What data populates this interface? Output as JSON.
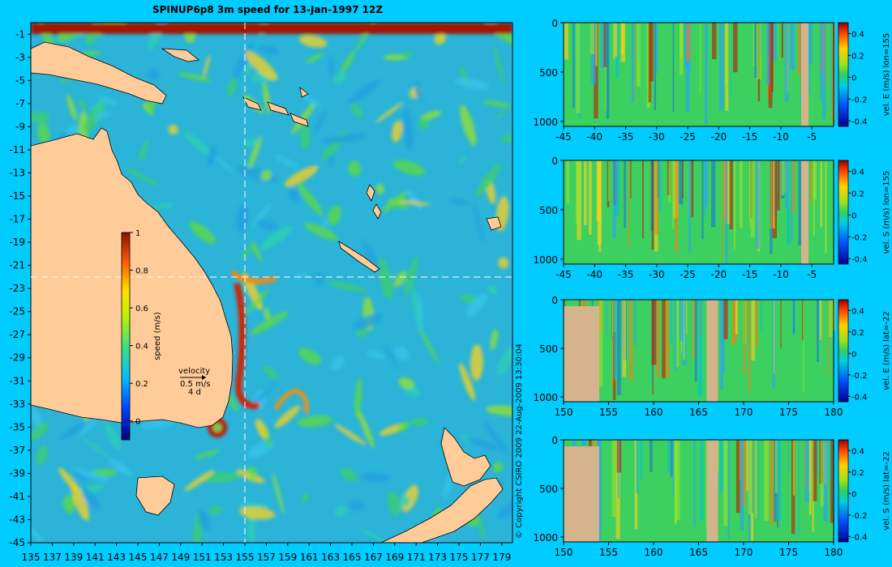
{
  "title": "SPINUP6p8 3m speed for 13-Jan-1997 12Z",
  "copyright": "© Copyright CSIRO 2009   22-Aug-2009 13:30:04",
  "chart_data": [
    {
      "type": "heatmap",
      "name": "surface speed map",
      "title": "SPINUP6p8 3m speed for 13-Jan-1997 12Z",
      "x_ticks": [
        135,
        137,
        139,
        141,
        143,
        145,
        147,
        149,
        151,
        153,
        155,
        157,
        159,
        161,
        163,
        165,
        167,
        169,
        171,
        173,
        175,
        177,
        179
      ],
      "y_ticks": [
        -1,
        -3,
        -5,
        -7,
        -9,
        -11,
        -13,
        -15,
        -17,
        -19,
        -21,
        -23,
        -25,
        -27,
        -29,
        -31,
        -33,
        -35,
        -37,
        -39,
        -41,
        -43,
        -45
      ],
      "xlim": [
        135,
        180
      ],
      "ylim": [
        -45,
        0
      ],
      "colorbar": {
        "label": "speed (m/s)",
        "ticks": [
          1,
          0.8,
          0.6,
          0.4,
          0.2,
          0
        ],
        "range": [
          -0.1,
          1
        ]
      },
      "velocity_key": {
        "label": "velocity",
        "speed": "0.5 m/s",
        "duration": "4 d"
      },
      "section_lines": {
        "lon": 155,
        "lat": -22
      }
    },
    {
      "type": "heatmap",
      "name": "vel E section lon=155",
      "colorbar_label": "vel. E (m/s) lon=155",
      "x_ticks": [
        -45,
        -40,
        -35,
        -30,
        -25,
        -20,
        -15,
        -10,
        -5
      ],
      "y_ticks": [
        0,
        500,
        1000
      ],
      "colorbar_ticks": [
        0.4,
        0.2,
        0,
        -0.2,
        -0.4
      ]
    },
    {
      "type": "heatmap",
      "name": "vel S section lon=155",
      "colorbar_label": "vel. S (m/s) lon=155",
      "x_ticks": [
        -45,
        -40,
        -35,
        -30,
        -25,
        -20,
        -15,
        -10,
        -5
      ],
      "y_ticks": [
        0,
        500,
        1000
      ],
      "colorbar_ticks": [
        0.4,
        0.2,
        0,
        -0.2,
        -0.4
      ]
    },
    {
      "type": "heatmap",
      "name": "vel E section lat=-22",
      "colorbar_label": "vel. E (m/s) lat=-22",
      "x_ticks": [
        150,
        155,
        160,
        165,
        170,
        175,
        180
      ],
      "y_ticks": [
        0,
        500,
        1000
      ],
      "colorbar_ticks": [
        0.4,
        0.2,
        0,
        -0.2,
        -0.4
      ]
    },
    {
      "type": "heatmap",
      "name": "vel S section lat=-22",
      "colorbar_label": "vel. S (m/s) lat=-22",
      "x_ticks": [
        150,
        155,
        160,
        165,
        170,
        175,
        180
      ],
      "y_ticks": [
        0,
        500,
        1000
      ],
      "colorbar_ticks": [
        0.4,
        0.2,
        0,
        -0.2,
        -0.4
      ]
    }
  ]
}
